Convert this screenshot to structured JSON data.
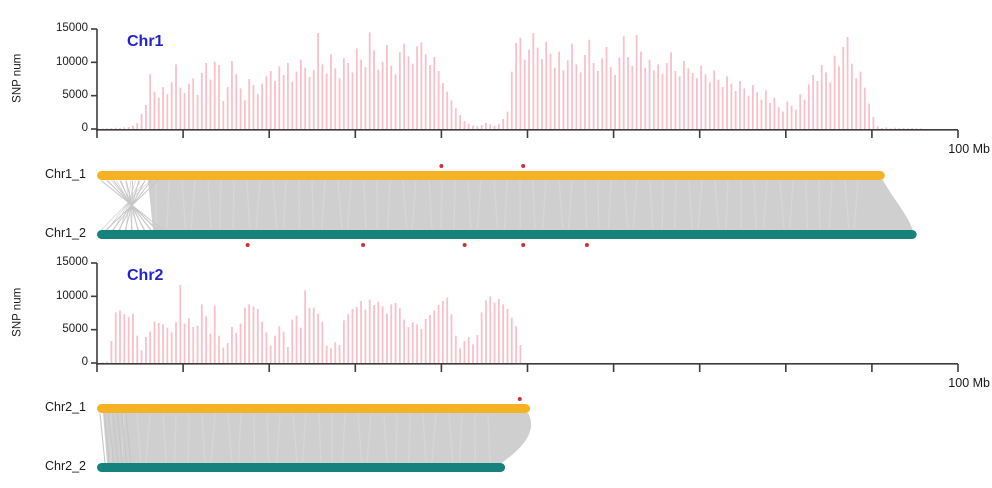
{
  "colors": {
    "bar_pink": "#F8C0CB",
    "hap1_yellow": "#F5B324",
    "hap2_teal": "#15837B",
    "synteny_gray": "#CFCFCF",
    "synteny_line": "#C6C6C6",
    "axis": "#3D3D3D",
    "title_blue": "#2323CC",
    "dot_red": "#C93434",
    "text": "#1A1A1A"
  },
  "chart_data": [
    {
      "type": "bar",
      "title": "Chr1",
      "ylabel": "SNP num",
      "x_end_label": "100 Mb",
      "bin_size_mb": 0.5,
      "xlim_mb": [
        0,
        100
      ],
      "xtick_interval_mb": 10,
      "ylim": [
        0,
        15000
      ],
      "yticks": [
        0,
        5000,
        10000,
        15000
      ],
      "values": [
        50,
        80,
        120,
        150,
        200,
        180,
        250,
        300,
        500,
        900,
        2300,
        3600,
        8200,
        5600,
        4700,
        6300,
        5200,
        7000,
        9700,
        6200,
        5400,
        6800,
        7600,
        5100,
        8400,
        9900,
        7400,
        10100,
        9600,
        4200,
        6300,
        10200,
        8200,
        6100,
        4300,
        7500,
        6600,
        5200,
        6800,
        7900,
        8700,
        7200,
        9400,
        8100,
        9900,
        7100,
        8600,
        10400,
        9200,
        7800,
        8800,
        14400,
        9700,
        8300,
        11200,
        9100,
        7600,
        10600,
        9900,
        8500,
        12100,
        10400,
        9300,
        14500,
        11800,
        8900,
        10100,
        12600,
        9500,
        8200,
        11500,
        12800,
        10900,
        9800,
        12400,
        13000,
        11200,
        9600,
        10800,
        8700,
        6900,
        5600,
        4300,
        3100,
        2100,
        1200,
        800,
        500,
        400,
        600,
        900,
        700,
        500,
        800,
        1500,
        2600,
        8600,
        12900,
        13700,
        10400,
        11900,
        14400,
        12200,
        10500,
        13100,
        11300,
        9200,
        11600,
        8800,
        10300,
        12800,
        9700,
        8500,
        11100,
        13400,
        9900,
        8700,
        10600,
        12300,
        9300,
        8100,
        10700,
        13900,
        10800,
        9500,
        14100,
        11600,
        9200,
        10400,
        8800,
        9700,
        8300,
        9900,
        11500,
        8700,
        7900,
        10200,
        9100,
        8400,
        7600,
        9500,
        8200,
        7000,
        8800,
        7400,
        6300,
        7900,
        6800,
        5700,
        7200,
        6100,
        5000,
        6600,
        5500,
        4400,
        5800,
        3900,
        4700,
        3300,
        2600,
        4100,
        3500,
        2900,
        5200,
        4400,
        6700,
        8100,
        7200,
        9600,
        8500,
        7000,
        11000,
        9400,
        12300,
        13800,
        9800,
        7600,
        8600,
        6200,
        3800,
        1800,
        400,
        150,
        250,
        100,
        200,
        120,
        180,
        90,
        150,
        100,
        80
      ]
    },
    {
      "type": "bar",
      "title": "Chr2",
      "ylabel": "SNP num",
      "x_end_label": "100 Mb",
      "bin_size_mb": 0.5,
      "xlim_mb": [
        0,
        100
      ],
      "xtick_interval_mb": 10,
      "ylim": [
        0,
        15000
      ],
      "yticks": [
        0,
        5000,
        10000,
        15000
      ],
      "values": [
        0,
        100,
        200,
        3300,
        7600,
        7900,
        7300,
        6900,
        7400,
        4100,
        1900,
        3900,
        4700,
        6200,
        6000,
        5800,
        5300,
        4600,
        6100,
        11700,
        5900,
        6700,
        5400,
        5600,
        8800,
        7000,
        4400,
        8600,
        4100,
        2300,
        3000,
        5400,
        4500,
        5900,
        8300,
        8800,
        8500,
        8100,
        6200,
        4600,
        2600,
        4100,
        5500,
        4700,
        2400,
        6500,
        7100,
        5300,
        10900,
        8300,
        8300,
        7400,
        6200,
        2600,
        2200,
        3100,
        2700,
        6400,
        7300,
        8100,
        8400,
        9300,
        8000,
        9500,
        8700,
        9200,
        8500,
        7400,
        8800,
        9000,
        8200,
        6500,
        5400,
        6100,
        5800,
        5100,
        6600,
        7200,
        7900,
        8700,
        9300,
        9800,
        7300,
        4100,
        2200,
        3300,
        3900,
        2800,
        4200,
        7600,
        9400,
        10000,
        9100,
        9600,
        8800,
        8100,
        6800,
        5500,
        2700,
        0
      ]
    }
  ],
  "synteny_panels": [
    {
      "top_label": "Chr1_1",
      "bottom_label": "Chr1_2",
      "top_length_mb": 91.5,
      "bottom_length_mb": 95.2,
      "dots_above_top_mb": [
        40.0,
        49.5
      ],
      "dots_below_bottom_mb": [
        17.5,
        30.9,
        42.7,
        49.5,
        56.9
      ],
      "left_inversion_cross": true
    },
    {
      "top_label": "Chr2_1",
      "bottom_label": "Chr2_2",
      "top_length_mb": 50.3,
      "bottom_length_mb": 47.4,
      "dots_above_top_mb": [
        49.1
      ],
      "dots_below_bottom_mb": [],
      "left_inversion_cross": false
    }
  ]
}
